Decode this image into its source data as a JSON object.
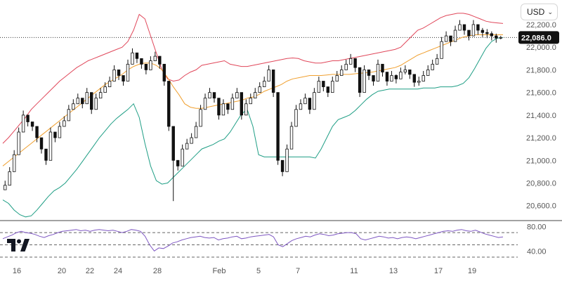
{
  "currency_selector": {
    "value": "USD",
    "chevron_icon": "chevron-down-icon"
  },
  "logo": {
    "icon": "tradingview-logo-icon"
  },
  "colors": {
    "upper_band": "#e0475a",
    "middle_band": "#f0a030",
    "lower_band": "#1f9e85",
    "rsi_line": "#7e57c2",
    "candle": "#111111",
    "last_price_label_bg": "#111111"
  },
  "chart_data": [
    {
      "type": "candlestick",
      "indicators": [
        "Bollinger Bands"
      ],
      "x_ticks": [
        "16",
        "20",
        "22",
        "24",
        "28",
        "Feb",
        "5",
        "7",
        "11",
        "13",
        "17",
        "19"
      ],
      "y_ticks": [
        "20,600.0",
        "20,800.0",
        "21,000.0",
        "21,200.0",
        "21,400.0",
        "21,600.0",
        "21,800.0",
        "22,000.0",
        "22,200.0"
      ],
      "ylim": [
        20480,
        22380
      ],
      "last_price": 22086.0,
      "last_price_label": "22,086.0",
      "grid": false,
      "series": [
        {
          "role": "close",
          "values": [
            20780,
            20900,
            21050,
            21250,
            21400,
            21340,
            21300,
            21200,
            21100,
            21000,
            21250,
            21200,
            21300,
            21350,
            21450,
            21500,
            21550,
            21500,
            21600,
            21450,
            21550,
            21600,
            21650,
            21700,
            21800,
            21750,
            21700,
            21850,
            21950,
            21900,
            21850,
            21800,
            21880,
            21920,
            21850,
            21700,
            21300,
            21000,
            20950,
            21100,
            21150,
            21200,
            21300,
            21450,
            21550,
            21600,
            21550,
            21400,
            21500,
            21450,
            21550,
            21600,
            21400,
            21500,
            21550,
            21600,
            21650,
            21700,
            21800,
            21600,
            21000,
            20900,
            21100,
            21300,
            21450,
            21500,
            21550,
            21450,
            21600,
            21700,
            21650,
            21600,
            21700,
            21750,
            21800,
            21850,
            21900,
            21820,
            21600,
            21800,
            21750,
            21700,
            21850,
            21780,
            21700,
            21750,
            21720,
            21780,
            21800,
            21760,
            21690,
            21700,
            21750,
            21800,
            21850,
            21900,
            22050,
            22100,
            22050,
            22150,
            22200,
            22150,
            22100,
            22200,
            22150,
            22130,
            22120,
            22100,
            22080,
            22086
          ]
        },
        {
          "role": "high",
          "values": [
            20820,
            20940,
            21090,
            21290,
            21440,
            21380,
            21340,
            21240,
            21140,
            21040,
            21290,
            21240,
            21340,
            21390,
            21490,
            21540,
            21590,
            21540,
            21640,
            21490,
            21590,
            21640,
            21690,
            21740,
            21840,
            21790,
            21740,
            21890,
            21990,
            21940,
            21890,
            21840,
            21920,
            21960,
            21890,
            21740,
            21340,
            21040,
            20990,
            21140,
            21190,
            21240,
            21340,
            21490,
            21590,
            21640,
            21590,
            21440,
            21540,
            21490,
            21590,
            21640,
            21440,
            21540,
            21590,
            21640,
            21690,
            21740,
            21840,
            21640,
            21040,
            20940,
            21140,
            21340,
            21490,
            21540,
            21590,
            21490,
            21640,
            21740,
            21690,
            21640,
            21740,
            21790,
            21840,
            21890,
            21940,
            21860,
            21640,
            21840,
            21790,
            21740,
            21890,
            21820,
            21740,
            21790,
            21760,
            21820,
            21840,
            21800,
            21730,
            21740,
            21790,
            21840,
            21890,
            21940,
            22090,
            22140,
            22090,
            22190,
            22240,
            22190,
            22140,
            22240,
            22190,
            22170,
            22160,
            22140,
            22120,
            22100
          ]
        },
        {
          "role": "low",
          "values": [
            20740,
            20860,
            21010,
            21210,
            21360,
            21300,
            21260,
            21160,
            21060,
            20960,
            21210,
            21160,
            21260,
            21310,
            21410,
            21460,
            21510,
            21460,
            21560,
            21410,
            21510,
            21560,
            21610,
            21660,
            21760,
            21710,
            21660,
            21810,
            21910,
            21860,
            21810,
            21760,
            21840,
            21880,
            21810,
            21660,
            21260,
            20640,
            20910,
            21060,
            21110,
            21160,
            21260,
            21410,
            21510,
            21560,
            21510,
            21360,
            21460,
            21410,
            21510,
            21560,
            21360,
            21460,
            21510,
            21560,
            21610,
            21660,
            21760,
            21560,
            20960,
            20860,
            21060,
            21260,
            21410,
            21460,
            21510,
            21410,
            21560,
            21660,
            21610,
            21560,
            21660,
            21710,
            21760,
            21810,
            21860,
            21780,
            21560,
            21760,
            21710,
            21660,
            21810,
            21740,
            21660,
            21710,
            21680,
            21740,
            21760,
            21720,
            21650,
            21660,
            21710,
            21760,
            21810,
            21860,
            22010,
            22060,
            22010,
            22110,
            22160,
            22110,
            22060,
            22160,
            22110,
            22090,
            22080,
            22060,
            22040,
            22070
          ]
        },
        {
          "role": "upper",
          "values": [
            21150,
            21200,
            21260,
            21320,
            21380,
            21450,
            21500,
            21550,
            21600,
            21650,
            21700,
            21740,
            21780,
            21820,
            21850,
            21880,
            21900,
            21920,
            21940,
            21960,
            21980,
            22000,
            22050,
            22150,
            22290,
            22250,
            22100,
            21950,
            21800,
            21720,
            21700,
            21710,
            21750,
            21780,
            21800,
            21840,
            21850,
            21860,
            21870,
            21880,
            21850,
            21840,
            21830,
            21830,
            21840,
            21850,
            21860,
            21870,
            21880,
            21890,
            21900,
            21905,
            21900,
            21880,
            21870,
            21860,
            21860,
            21870,
            21880,
            21880,
            21890,
            21900,
            21910,
            21920,
            21930,
            21940,
            21950,
            21960,
            21970,
            21980,
            22000,
            22050,
            22100,
            22150,
            22170,
            22200,
            22230,
            22260,
            22280,
            22290,
            22300,
            22300,
            22290,
            22270,
            22250,
            22230,
            22220,
            22215,
            22210
          ]
        },
        {
          "role": "middle",
          "values": [
            20950,
            20990,
            21030,
            21070,
            21110,
            21150,
            21190,
            21230,
            21270,
            21310,
            21350,
            21390,
            21430,
            21470,
            21510,
            21550,
            21590,
            21630,
            21670,
            21700,
            21730,
            21760,
            21800,
            21830,
            21850,
            21860,
            21860,
            21840,
            21800,
            21730,
            21650,
            21580,
            21500,
            21470,
            21460,
            21460,
            21470,
            21480,
            21490,
            21500,
            21510,
            21520,
            21530,
            21550,
            21560,
            21580,
            21610,
            21630,
            21650,
            21670,
            21700,
            21720,
            21730,
            21740,
            21750,
            21750,
            21750,
            21755,
            21760,
            21760,
            21760,
            21760,
            21765,
            21770,
            21775,
            21780,
            21790,
            21800,
            21810,
            21820,
            21840,
            21870,
            21900,
            21930,
            21950,
            21970,
            21990,
            22010,
            22030,
            22050,
            22070,
            22090,
            22100,
            22110,
            22110,
            22110,
            22110,
            22110,
            22110
          ]
        },
        {
          "role": "lower",
          "values": [
            20650,
            20620,
            20560,
            20520,
            20500,
            20510,
            20560,
            20620,
            20680,
            20730,
            20760,
            20800,
            20860,
            20920,
            20990,
            21060,
            21130,
            21200,
            21260,
            21320,
            21370,
            21410,
            21450,
            21500,
            21380,
            21150,
            20950,
            20820,
            20790,
            20800,
            20850,
            20900,
            20950,
            21000,
            21050,
            21100,
            21120,
            21140,
            21170,
            21190,
            21250,
            21330,
            21410,
            21450,
            21300,
            21050,
            21030,
            21030,
            21030,
            21030,
            21030,
            21030,
            21030,
            21030,
            21030,
            21020,
            21100,
            21200,
            21300,
            21360,
            21380,
            21400,
            21440,
            21490,
            21540,
            21580,
            21610,
            21620,
            21630,
            21630,
            21630,
            21630,
            21630,
            21630,
            21640,
            21640,
            21640,
            21650,
            21650,
            21650,
            21660,
            21680,
            21730,
            21810,
            21900,
            21990,
            22050,
            22080,
            22085
          ]
        }
      ]
    },
    {
      "type": "line",
      "indicator": "RSI",
      "y_ticks": [
        "40.00",
        "80.00"
      ],
      "ylim": [
        30,
        85
      ],
      "reference_lines": [
        70,
        50,
        30
      ],
      "series": [
        {
          "values": [
            60,
            63,
            66,
            70,
            72,
            70,
            69,
            67,
            64,
            62,
            65,
            67,
            70,
            72,
            73,
            74,
            75,
            73,
            74,
            72,
            74,
            75,
            74,
            73,
            74,
            72,
            70,
            72,
            75,
            74,
            72,
            64,
            50,
            40,
            45,
            44,
            48,
            53,
            55,
            58,
            60,
            62,
            63,
            64,
            62,
            61,
            62,
            58,
            60,
            61,
            63,
            64,
            60,
            61,
            63,
            64,
            65,
            66,
            67,
            63,
            50,
            47,
            52,
            57,
            60,
            62,
            64,
            63,
            66,
            68,
            67,
            65,
            66,
            68,
            69,
            70,
            70,
            68,
            60,
            58,
            60,
            62,
            64,
            63,
            61,
            62,
            60,
            62,
            63,
            62,
            60,
            62,
            64,
            66,
            68,
            70,
            72,
            73,
            72,
            74,
            75,
            73,
            72,
            74,
            71,
            68,
            66,
            64,
            62,
            63
          ]
        }
      ]
    }
  ]
}
